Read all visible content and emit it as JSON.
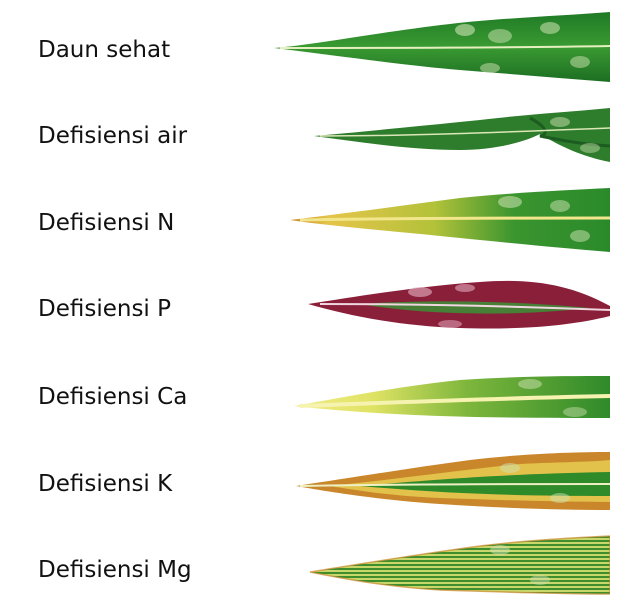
{
  "rows": [
    {
      "label": "Daun sehat",
      "leaf": "healthy-leaf"
    },
    {
      "label": "Defisiensi air",
      "leaf": "water-deficiency-leaf"
    },
    {
      "label": "Defisiensi N",
      "leaf": "nitrogen-deficiency-leaf"
    },
    {
      "label": "Defisiensi P",
      "leaf": "phosphorus-deficiency-leaf"
    },
    {
      "label": "Defisiensi Ca",
      "leaf": "calcium-deficiency-leaf"
    },
    {
      "label": "Defisiensi K",
      "leaf": "potassium-deficiency-leaf"
    },
    {
      "label": "Defisiensi Mg",
      "leaf": "magnesium-deficiency-leaf"
    }
  ],
  "colors": {
    "leaf_green": "#2f8a2a",
    "leaf_dark_green": "#1f6b22",
    "midrib": "#e9edc0",
    "yellow": "#e8d84a",
    "orange_edge": "#c9862b",
    "purple": "#8a1f3a",
    "pale_yellow": "#f2ec8a"
  }
}
